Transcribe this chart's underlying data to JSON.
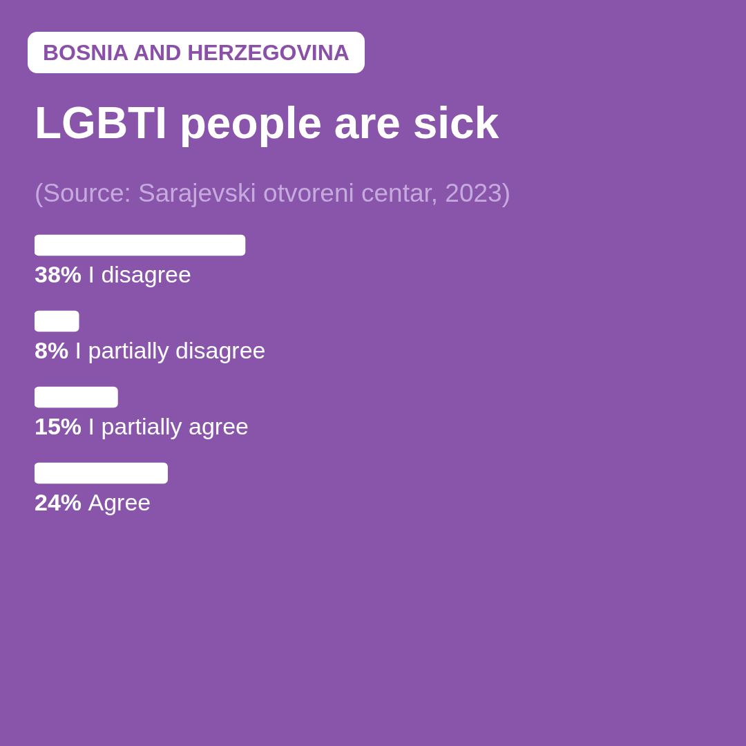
{
  "chart_data": {
    "type": "bar",
    "orientation": "horizontal",
    "title": "LGBTI people are sick",
    "subtitle": "BOSNIA AND HERZEGOVINA",
    "annotations": [
      "(Source: Sarajevski otvoreni centar, 2023)"
    ],
    "categories": [
      "I disagree",
      "I partially disagree",
      "I partially agree",
      "Agree"
    ],
    "values": [
      38,
      8,
      15,
      24
    ],
    "value_labels": [
      "38%",
      "8%",
      "15%",
      "24%"
    ],
    "color": "#ffffff",
    "legend": false
  }
}
